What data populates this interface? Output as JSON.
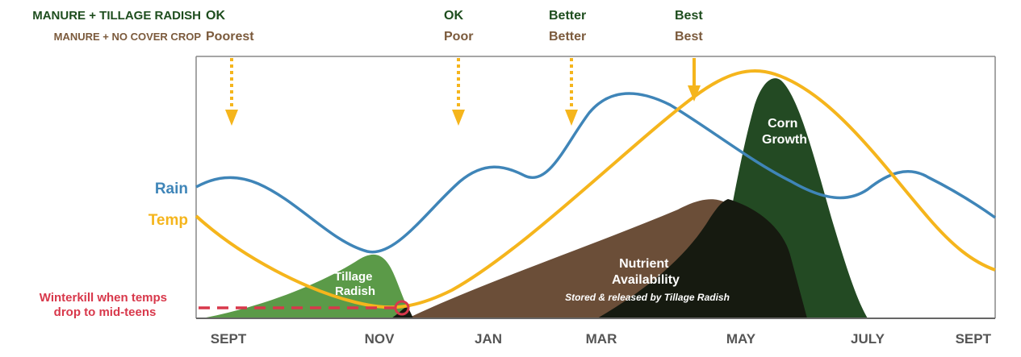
{
  "header": {
    "rows": [
      "MANURE + TILLAGE RADISH",
      "MANURE + NO COVER CROP"
    ]
  },
  "ratings": [
    {
      "radish": "OK",
      "no_cover": "Poorest"
    },
    {
      "radish": "OK",
      "no_cover": "Poor"
    },
    {
      "radish": "Better",
      "no_cover": "Better"
    },
    {
      "radish": "Best",
      "no_cover": "Best"
    }
  ],
  "curves": {
    "rain": "Rain",
    "temp": "Temp"
  },
  "annotations": {
    "winterkill": [
      "Winterkill when temps",
      "drop to mid-teens"
    ],
    "radish": [
      "Tillage",
      "Radish"
    ],
    "nutrient": [
      "Nutrient",
      "Availability"
    ],
    "nutrient_note": "Stored & released by Tillage Radish",
    "corn": [
      "Corn",
      "Growth"
    ]
  },
  "months": [
    "SEPT",
    "NOV",
    "JAN",
    "MAR",
    "MAY",
    "JULY",
    "SEPT"
  ]
}
